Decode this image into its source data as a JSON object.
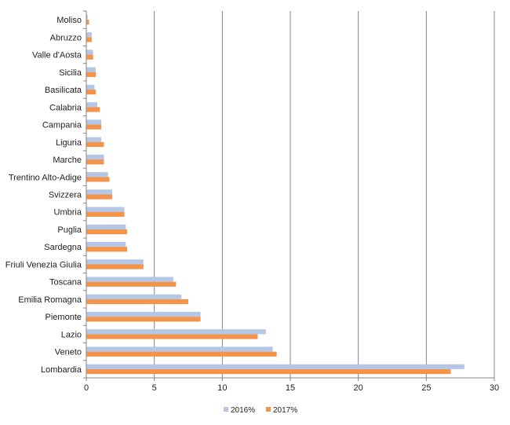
{
  "chart_data": {
    "type": "bar",
    "orientation": "horizontal",
    "categories": [
      "Moliso",
      "Abruzzo",
      "Valle d'Aosta",
      "Sicilia",
      "Basilicata",
      "Calabria",
      "Campania",
      "Liguria",
      "Marche",
      "Trentino Alto-Adige",
      "Svizzera",
      "Umbria",
      "Puglia",
      "Sardegna",
      "Friuli Venezia Giulia",
      "Toscana",
      "Emilia Romagna",
      "Piemonte",
      "Lazio",
      "Veneto",
      "Lombardia"
    ],
    "series": [
      {
        "name": "2016%",
        "color": "#b4c7e7",
        "values": [
          0.1,
          0.4,
          0.5,
          0.7,
          0.6,
          0.8,
          1.1,
          1.1,
          1.3,
          1.6,
          1.9,
          2.8,
          2.9,
          2.9,
          4.2,
          6.4,
          7.0,
          8.4,
          13.2,
          13.7,
          27.8
        ]
      },
      {
        "name": "2017%",
        "color": "#f4944a",
        "values": [
          0.2,
          0.4,
          0.5,
          0.7,
          0.7,
          1.0,
          1.1,
          1.3,
          1.3,
          1.7,
          1.9,
          2.8,
          3.0,
          3.0,
          4.2,
          6.6,
          7.5,
          8.4,
          12.6,
          14.0,
          26.8
        ]
      }
    ],
    "xlim": [
      0,
      30
    ],
    "xticks": [
      "0",
      "5",
      "10",
      "15",
      "20",
      "25",
      "30"
    ],
    "grid": true,
    "legend": "bottom"
  }
}
